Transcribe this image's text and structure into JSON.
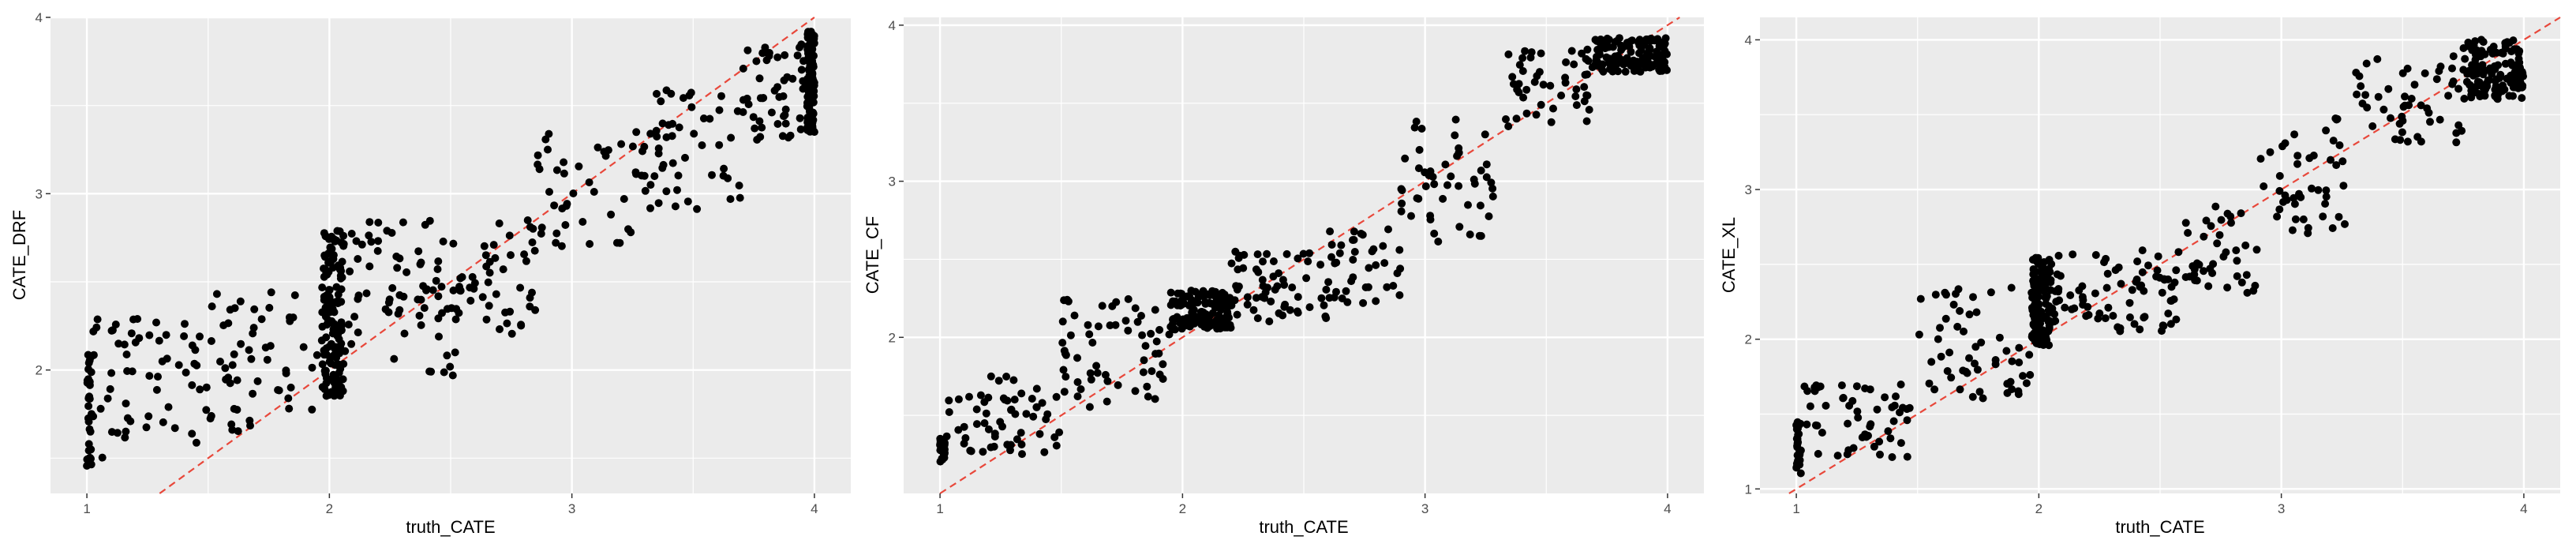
{
  "colors": {
    "panel_bg": "#EBEBEB",
    "grid": "#FFFFFF",
    "points": "#000000",
    "reference_line": "#E8473A"
  },
  "chart_data": [
    {
      "type": "scatter",
      "xlabel": "truth_CATE",
      "ylabel": "CATE_DRF",
      "xlim": [
        0.85,
        4.15
      ],
      "ylim": [
        1.3,
        4.0
      ],
      "xticks": [
        1,
        2,
        3,
        4
      ],
      "yticks": [
        2,
        3,
        4
      ],
      "grid": true,
      "reference_line": {
        "slope": 1,
        "intercept": 0,
        "style": "dashed"
      },
      "clusters": [
        {
          "x": [
            1.0,
            1.02
          ],
          "y": [
            1.4,
            2.1
          ],
          "n": 30
        },
        {
          "x": [
            1.0,
            1.5
          ],
          "y": [
            1.5,
            2.3
          ],
          "n": 60
        },
        {
          "x": [
            1.5,
            1.97
          ],
          "y": [
            1.65,
            2.45
          ],
          "n": 55
        },
        {
          "x": [
            1.97,
            2.06
          ],
          "y": [
            1.85,
            2.8
          ],
          "n": 140
        },
        {
          "x": [
            2.06,
            2.55
          ],
          "y": [
            1.95,
            2.85
          ],
          "n": 80
        },
        {
          "x": [
            2.55,
            2.85
          ],
          "y": [
            2.2,
            2.9
          ],
          "n": 40
        },
        {
          "x": [
            2.85,
            3.3
          ],
          "y": [
            2.7,
            3.35
          ],
          "n": 45
        },
        {
          "x": [
            3.3,
            3.7
          ],
          "y": [
            2.9,
            3.6
          ],
          "n": 50
        },
        {
          "x": [
            3.7,
            3.97
          ],
          "y": [
            3.3,
            3.85
          ],
          "n": 50
        },
        {
          "x": [
            3.97,
            4.0
          ],
          "y": [
            3.35,
            3.92
          ],
          "n": 120
        }
      ]
    },
    {
      "type": "scatter",
      "xlabel": "truth_CATE",
      "ylabel": "CATE_CF",
      "xlim": [
        0.85,
        4.15
      ],
      "ylim": [
        1.0,
        4.05
      ],
      "xticks": [
        1,
        2,
        3,
        4
      ],
      "yticks": [
        2,
        3,
        4
      ],
      "grid": true,
      "reference_line": {
        "slope": 1,
        "intercept": 0,
        "style": "dashed"
      },
      "clusters": [
        {
          "x": [
            1.0,
            1.02
          ],
          "y": [
            1.2,
            1.35
          ],
          "n": 30
        },
        {
          "x": [
            1.02,
            1.5
          ],
          "y": [
            1.25,
            1.75
          ],
          "n": 60
        },
        {
          "x": [
            1.5,
            1.95
          ],
          "y": [
            1.55,
            2.25
          ],
          "n": 60
        },
        {
          "x": [
            1.95,
            2.2
          ],
          "y": [
            2.05,
            2.3
          ],
          "n": 130
        },
        {
          "x": [
            2.2,
            2.6
          ],
          "y": [
            2.1,
            2.55
          ],
          "n": 60
        },
        {
          "x": [
            2.6,
            2.9
          ],
          "y": [
            2.2,
            2.7
          ],
          "n": 40
        },
        {
          "x": [
            2.9,
            3.3
          ],
          "y": [
            2.6,
            3.4
          ],
          "n": 50
        },
        {
          "x": [
            3.3,
            3.7
          ],
          "y": [
            3.35,
            3.85
          ],
          "n": 50
        },
        {
          "x": [
            3.7,
            4.0
          ],
          "y": [
            3.7,
            3.92
          ],
          "n": 130
        }
      ]
    },
    {
      "type": "scatter",
      "xlabel": "truth_CATE",
      "ylabel": "CATE_XL",
      "xlim": [
        0.85,
        4.15
      ],
      "ylim": [
        0.97,
        4.15
      ],
      "xticks": [
        1,
        2,
        3,
        4
      ],
      "yticks": [
        1,
        2,
        3,
        4
      ],
      "grid": true,
      "reference_line": {
        "slope": 1,
        "intercept": 0,
        "style": "dashed"
      },
      "clusters": [
        {
          "x": [
            1.0,
            1.02
          ],
          "y": [
            1.1,
            1.45
          ],
          "n": 30
        },
        {
          "x": [
            1.02,
            1.5
          ],
          "y": [
            1.2,
            1.7
          ],
          "n": 55
        },
        {
          "x": [
            1.5,
            1.97
          ],
          "y": [
            1.6,
            2.35
          ],
          "n": 55
        },
        {
          "x": [
            1.97,
            2.05
          ],
          "y": [
            1.95,
            2.55
          ],
          "n": 130
        },
        {
          "x": [
            2.05,
            2.6
          ],
          "y": [
            2.05,
            2.6
          ],
          "n": 80
        },
        {
          "x": [
            2.6,
            2.9
          ],
          "y": [
            2.3,
            2.9
          ],
          "n": 40
        },
        {
          "x": [
            2.9,
            3.3
          ],
          "y": [
            2.7,
            3.5
          ],
          "n": 45
        },
        {
          "x": [
            3.3,
            3.75
          ],
          "y": [
            3.3,
            3.9
          ],
          "n": 50
        },
        {
          "x": [
            3.75,
            4.0
          ],
          "y": [
            3.6,
            4.0
          ],
          "n": 130
        }
      ]
    }
  ]
}
